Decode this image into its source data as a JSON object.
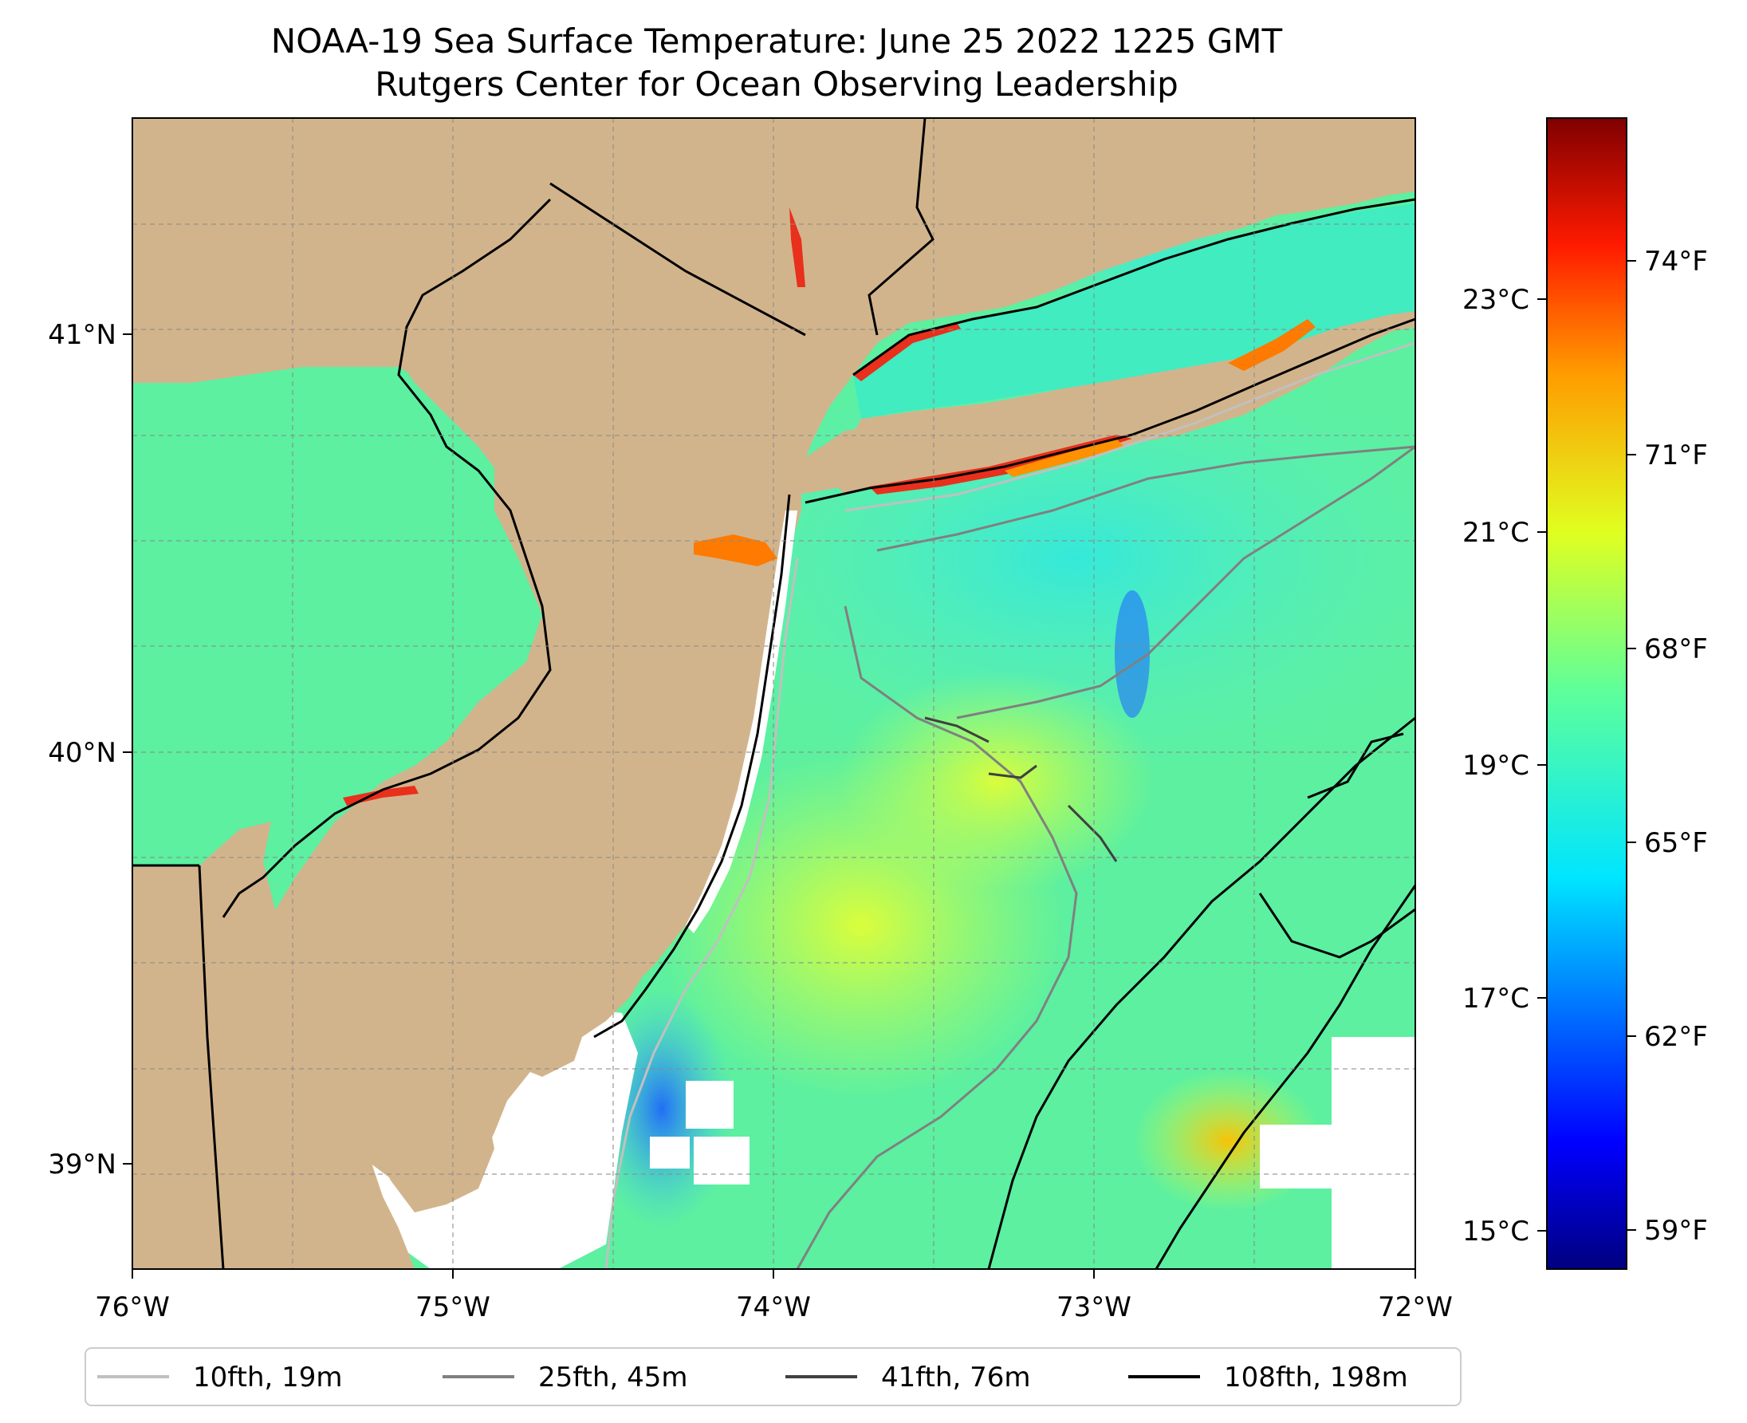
{
  "title": {
    "line1": "NOAA-19 Sea Surface Temperature: June 25 2022 1225 GMT",
    "line2": "Rutgers Center for Ocean Observing Leadership"
  },
  "map": {
    "lon_ticks": [
      "76°W",
      "75°W",
      "74°W",
      "73°W",
      "72°W"
    ],
    "lat_ticks": [
      "41°N",
      "40°N",
      "39°N"
    ],
    "lon_range": [
      -76,
      -72
    ],
    "lat_range": [
      38.75,
      41.52
    ]
  },
  "colorbar": {
    "celsius_ticks": [
      "23°C",
      "21°C",
      "19°C",
      "17°C",
      "15°C"
    ],
    "fahrenheit_ticks": [
      "74°F",
      "71°F",
      "68°F",
      "65°F",
      "62°F",
      "59°F"
    ],
    "range_f": [
      58.0,
      76.5
    ]
  },
  "legend": {
    "entries": [
      {
        "label": "10fth, 19m",
        "color": "#c0c0c0"
      },
      {
        "label": "25fth, 45m",
        "color": "#808080"
      },
      {
        "label": "41fth, 76m",
        "color": "#404040"
      },
      {
        "label": "108fth, 198m",
        "color": "#000000"
      }
    ]
  },
  "colors": {
    "land": "#d2b48c",
    "ocean_base": "#5cf0a0",
    "warm_band": "#e8301c",
    "cold_patch": "#1a4cf0"
  }
}
